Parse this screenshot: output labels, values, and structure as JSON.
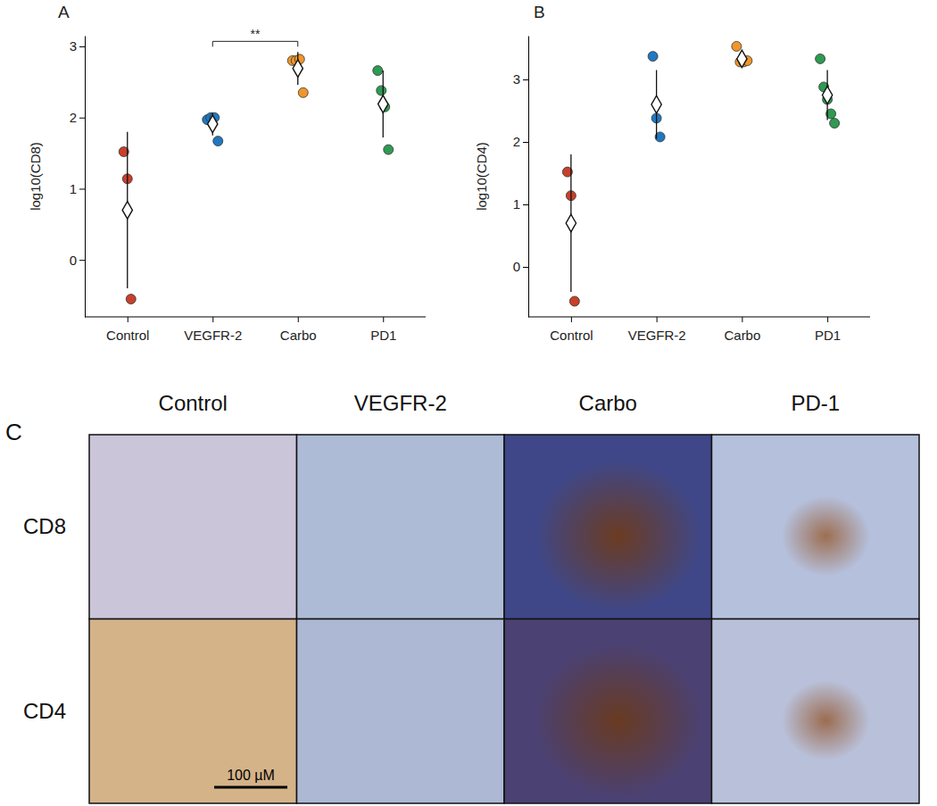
{
  "chart_data": [
    {
      "type": "scatter",
      "title": "A",
      "y_label": "log10(CD8)",
      "categories": [
        "Control",
        "VEGFR-2",
        "Carbo",
        "PD1"
      ],
      "colors": [
        "#c8402a",
        "#1f78c1",
        "#f0962a",
        "#2e9a52"
      ],
      "values": [
        [
          1.52,
          1.14,
          -0.55
        ],
        [
          1.97,
          2.0,
          2.0,
          1.67
        ],
        [
          2.8,
          2.8,
          2.82,
          2.35
        ],
        [
          2.66,
          2.38,
          2.15,
          1.55
        ]
      ],
      "means": [
        0.7,
        1.91,
        2.69,
        2.19
      ],
      "sd": [
        1.1,
        0.16,
        0.23,
        0.47
      ],
      "ylim": [
        -0.8,
        3.15
      ],
      "yticks": [
        0,
        1,
        2,
        3
      ],
      "annotations": [
        {
          "text": "**",
          "between": [
            1,
            2
          ]
        }
      ]
    },
    {
      "type": "scatter",
      "title": "B",
      "y_label": "log10(CD4)",
      "categories": [
        "Control",
        "VEGFR-2",
        "Carbo",
        "PD1"
      ],
      "colors": [
        "#c8402a",
        "#1f78c1",
        "#f0962a",
        "#2e9a52"
      ],
      "values": [
        [
          1.52,
          1.14,
          -0.55
        ],
        [
          3.37,
          2.38,
          2.08
        ],
        [
          3.53,
          3.28,
          3.28,
          3.3
        ],
        [
          3.33,
          2.88,
          2.68,
          2.45,
          2.3
        ]
      ],
      "means": [
        0.7,
        2.6,
        3.33,
        2.75
      ],
      "sd": [
        1.1,
        0.55,
        0.12,
        0.4
      ],
      "ylim": [
        -0.8,
        3.7
      ],
      "yticks": [
        0,
        1,
        2,
        3
      ]
    }
  ],
  "image_panel": {
    "label": "C",
    "columns": [
      "Control",
      "VEGFR-2",
      "Carbo",
      "PD-1"
    ],
    "rows": [
      "CD8",
      "CD4"
    ],
    "scale_bar": "100 µM"
  }
}
